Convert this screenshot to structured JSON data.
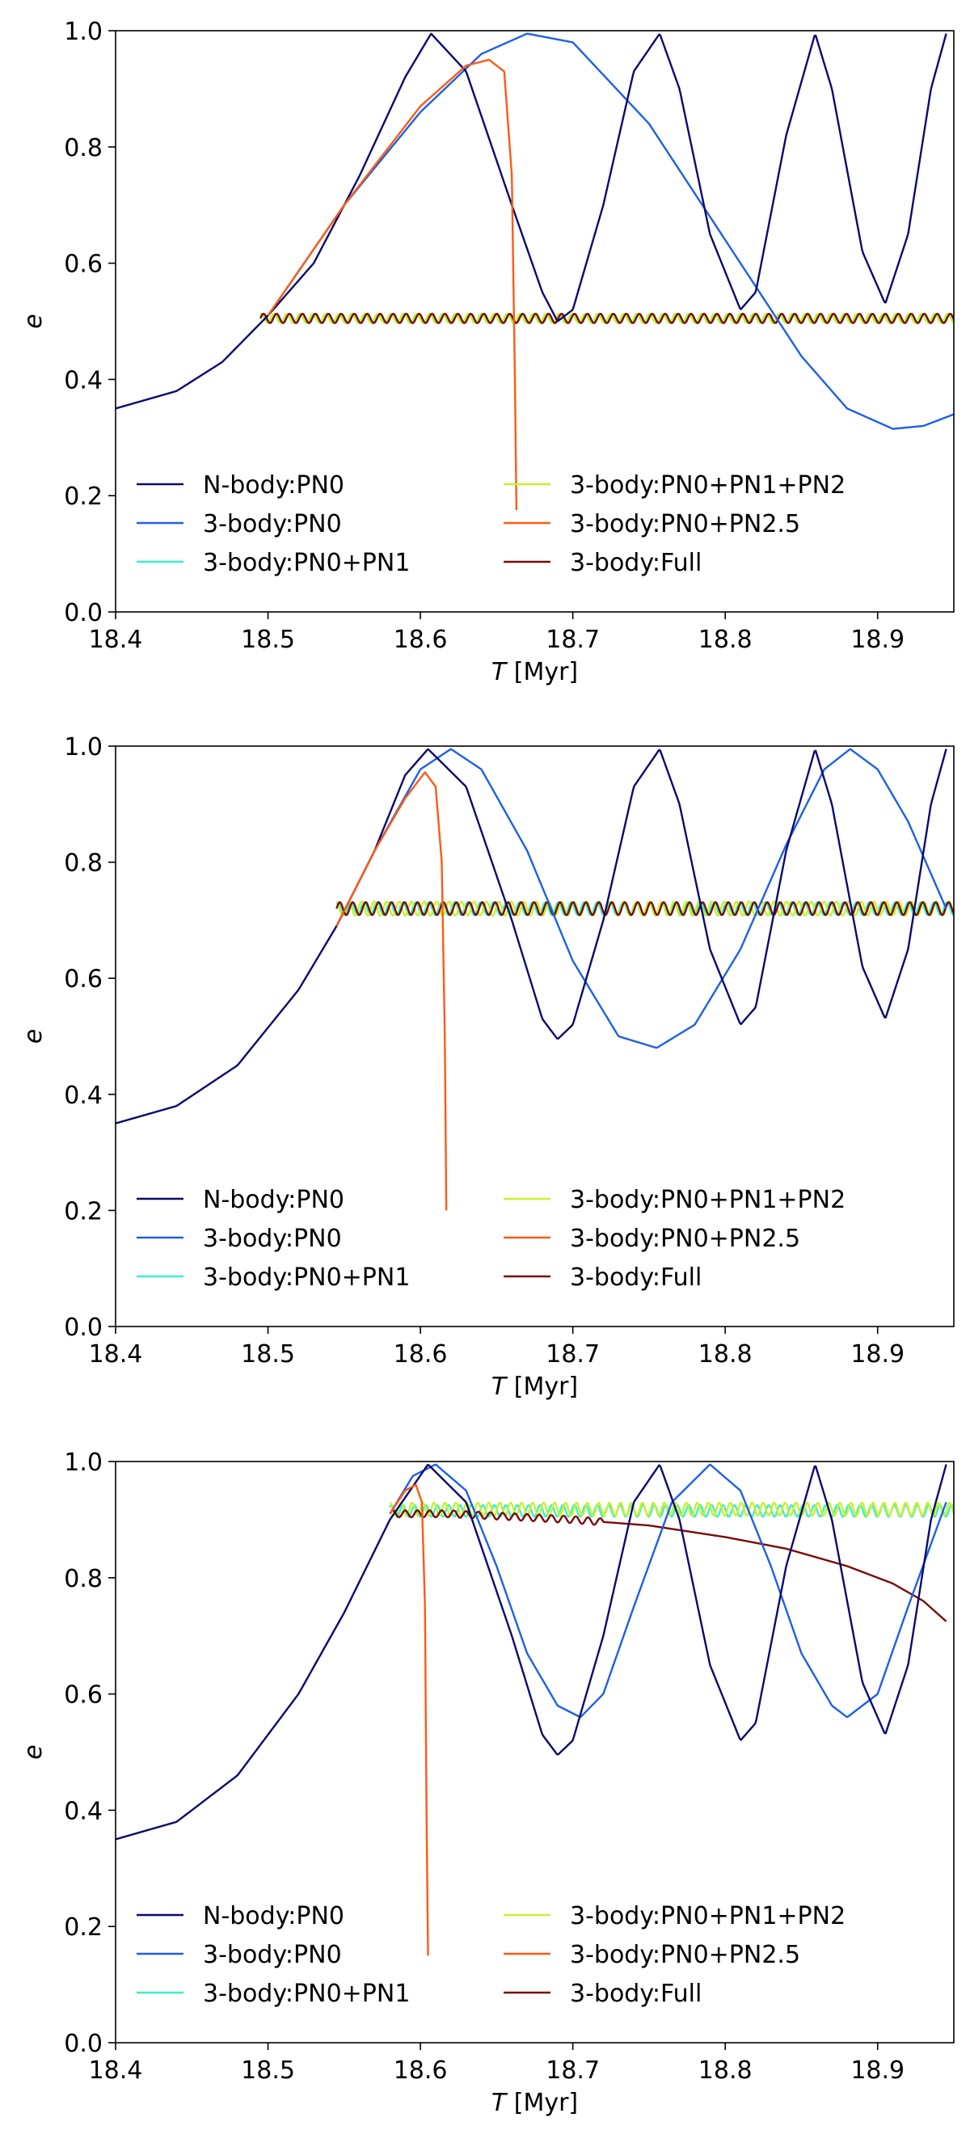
{
  "figure": {
    "panel_count": 3
  },
  "chart_data": [
    {
      "type": "line",
      "title": "",
      "xlabel": "T [Myr]",
      "xlabel_italic": "T",
      "xlabel_unit": " [Myr]",
      "ylabel": "e",
      "xlim": [
        18.4,
        18.95
      ],
      "ylim": [
        0.0,
        1.0
      ],
      "xticks": [
        18.4,
        18.5,
        18.6,
        18.7,
        18.8,
        18.9
      ],
      "xtick_labels": [
        "18.4",
        "18.5",
        "18.6",
        "18.7",
        "18.8",
        "18.9"
      ],
      "yticks": [
        0.0,
        0.2,
        0.4,
        0.6,
        0.8,
        1.0
      ],
      "ytick_labels": [
        "0.0",
        "0.2",
        "0.4",
        "0.6",
        "0.8",
        "1.0"
      ],
      "grid": false,
      "legend": {
        "placement": "lower-center",
        "columns": 2
      },
      "series": [
        {
          "name": "N-body:PN0",
          "color": "#0a0a6e",
          "points": [
            [
              18.4,
              0.35
            ],
            [
              18.44,
              0.38
            ],
            [
              18.47,
              0.43
            ],
            [
              18.5,
              0.51
            ],
            [
              18.53,
              0.6
            ],
            [
              18.56,
              0.75
            ],
            [
              18.59,
              0.92
            ],
            [
              18.607,
              0.995
            ],
            [
              18.63,
              0.93
            ],
            [
              18.66,
              0.7
            ],
            [
              18.68,
              0.55
            ],
            [
              18.69,
              0.5
            ],
            [
              18.7,
              0.52
            ],
            [
              18.72,
              0.7
            ],
            [
              18.74,
              0.93
            ],
            [
              18.757,
              0.995
            ],
            [
              18.77,
              0.9
            ],
            [
              18.79,
              0.65
            ],
            [
              18.81,
              0.52
            ],
            [
              18.82,
              0.55
            ],
            [
              18.84,
              0.82
            ],
            [
              18.859,
              0.995
            ],
            [
              18.87,
              0.9
            ],
            [
              18.89,
              0.62
            ],
            [
              18.905,
              0.53
            ],
            [
              18.92,
              0.65
            ],
            [
              18.935,
              0.9
            ],
            [
              18.945,
              0.995
            ]
          ]
        },
        {
          "name": "3-body:PN0",
          "color": "#1f5fe8",
          "points": [
            [
              18.5,
              0.51
            ],
            [
              18.55,
              0.7
            ],
            [
              18.6,
              0.86
            ],
            [
              18.64,
              0.96
            ],
            [
              18.67,
              0.995
            ],
            [
              18.7,
              0.98
            ],
            [
              18.75,
              0.84
            ],
            [
              18.8,
              0.64
            ],
            [
              18.85,
              0.44
            ],
            [
              18.88,
              0.35
            ],
            [
              18.91,
              0.315
            ],
            [
              18.93,
              0.32
            ],
            [
              18.95,
              0.34
            ]
          ]
        },
        {
          "name": "3-body:PN0+PN1",
          "color": "#3cf0c8",
          "points": []
        },
        {
          "name": "3-body:PN0+PN1+PN2",
          "color": "#c8f032",
          "points": []
        },
        {
          "name": "3-body:PN0+PN2.5",
          "color": "#ff5a14",
          "points": [
            [
              18.5,
              0.51
            ],
            [
              18.55,
              0.7
            ],
            [
              18.6,
              0.87
            ],
            [
              18.63,
              0.94
            ],
            [
              18.645,
              0.95
            ],
            [
              18.655,
              0.93
            ],
            [
              18.66,
              0.75
            ],
            [
              18.662,
              0.4
            ],
            [
              18.663,
              0.175
            ]
          ]
        },
        {
          "name": "3-body:Full",
          "color": "#7a0a0a",
          "points": []
        }
      ],
      "oscillations": [
        {
          "series": "3-body:PN0+PN1",
          "x_start": 18.495,
          "x_end": 18.95,
          "center": 0.505,
          "amp": 0.008,
          "period": 0.0085,
          "phase": 0.6
        },
        {
          "series": "3-body:PN0+PN1+PN2",
          "x_start": 18.495,
          "x_end": 18.95,
          "center": 0.505,
          "amp": 0.008,
          "period": 0.0085,
          "phase": 1.2
        },
        {
          "series": "3-body:Full",
          "x_start": 18.495,
          "x_end": 18.95,
          "center": 0.505,
          "amp": 0.008,
          "period": 0.0085,
          "phase": 0.0
        }
      ]
    },
    {
      "type": "line",
      "title": "",
      "xlabel": "T [Myr]",
      "xlabel_italic": "T",
      "xlabel_unit": " [Myr]",
      "ylabel": "e",
      "xlim": [
        18.4,
        18.95
      ],
      "ylim": [
        0.0,
        1.0
      ],
      "xticks": [
        18.4,
        18.5,
        18.6,
        18.7,
        18.8,
        18.9
      ],
      "xtick_labels": [
        "18.4",
        "18.5",
        "18.6",
        "18.7",
        "18.8",
        "18.9"
      ],
      "yticks": [
        0.0,
        0.2,
        0.4,
        0.6,
        0.8,
        1.0
      ],
      "ytick_labels": [
        "0.0",
        "0.2",
        "0.4",
        "0.6",
        "0.8",
        "1.0"
      ],
      "grid": false,
      "legend": {
        "placement": "lower-center",
        "columns": 2
      },
      "series": [
        {
          "name": "N-body:PN0",
          "color": "#0a0a6e",
          "points": [
            [
              18.4,
              0.35
            ],
            [
              18.44,
              0.38
            ],
            [
              18.48,
              0.45
            ],
            [
              18.52,
              0.58
            ],
            [
              18.545,
              0.69
            ],
            [
              18.57,
              0.82
            ],
            [
              18.59,
              0.95
            ],
            [
              18.605,
              0.995
            ],
            [
              18.63,
              0.93
            ],
            [
              18.66,
              0.7
            ],
            [
              18.68,
              0.53
            ],
            [
              18.69,
              0.495
            ],
            [
              18.7,
              0.52
            ],
            [
              18.72,
              0.7
            ],
            [
              18.74,
              0.93
            ],
            [
              18.757,
              0.995
            ],
            [
              18.77,
              0.9
            ],
            [
              18.79,
              0.65
            ],
            [
              18.81,
              0.52
            ],
            [
              18.82,
              0.55
            ],
            [
              18.84,
              0.82
            ],
            [
              18.859,
              0.995
            ],
            [
              18.87,
              0.9
            ],
            [
              18.89,
              0.62
            ],
            [
              18.905,
              0.53
            ],
            [
              18.92,
              0.65
            ],
            [
              18.935,
              0.9
            ],
            [
              18.945,
              0.995
            ]
          ]
        },
        {
          "name": "3-body:PN0",
          "color": "#1f5fe8",
          "points": [
            [
              18.545,
              0.69
            ],
            [
              18.57,
              0.82
            ],
            [
              18.6,
              0.96
            ],
            [
              18.62,
              0.995
            ],
            [
              18.64,
              0.96
            ],
            [
              18.67,
              0.82
            ],
            [
              18.7,
              0.63
            ],
            [
              18.73,
              0.5
            ],
            [
              18.755,
              0.48
            ],
            [
              18.78,
              0.52
            ],
            [
              18.81,
              0.65
            ],
            [
              18.84,
              0.83
            ],
            [
              18.865,
              0.96
            ],
            [
              18.882,
              0.995
            ],
            [
              18.9,
              0.96
            ],
            [
              18.92,
              0.87
            ],
            [
              18.945,
              0.72
            ]
          ]
        },
        {
          "name": "3-body:PN0+PN1",
          "color": "#3cf0c8",
          "points": []
        },
        {
          "name": "3-body:PN0+PN1+PN2",
          "color": "#c8f032",
          "points": []
        },
        {
          "name": "3-body:PN0+PN2.5",
          "color": "#ff5a14",
          "points": [
            [
              18.545,
              0.69
            ],
            [
              18.57,
              0.82
            ],
            [
              18.59,
              0.91
            ],
            [
              18.603,
              0.955
            ],
            [
              18.61,
              0.93
            ],
            [
              18.614,
              0.8
            ],
            [
              18.616,
              0.5
            ],
            [
              18.617,
              0.2
            ]
          ]
        },
        {
          "name": "3-body:Full",
          "color": "#7a0a0a",
          "points": []
        }
      ],
      "oscillations": [
        {
          "series": "3-body:PN0+PN1",
          "x_start": 18.545,
          "x_end": 18.95,
          "center": 0.72,
          "amp": 0.011,
          "period": 0.0085,
          "phase": 0.8
        },
        {
          "series": "3-body:PN0+PN1+PN2",
          "x_start": 18.545,
          "x_end": 18.95,
          "center": 0.72,
          "amp": 0.012,
          "period": 0.0082,
          "phase": 1.6
        },
        {
          "series": "3-body:Full",
          "x_start": 18.545,
          "x_end": 18.95,
          "center": 0.72,
          "amp": 0.011,
          "period": 0.0085,
          "phase": 0.0
        }
      ]
    },
    {
      "type": "line",
      "title": "",
      "xlabel": "T [Myr]",
      "xlabel_italic": "T",
      "xlabel_unit": " [Myr]",
      "ylabel": "e",
      "xlim": [
        18.4,
        18.95
      ],
      "ylim": [
        0.0,
        1.0
      ],
      "xticks": [
        18.4,
        18.5,
        18.6,
        18.7,
        18.8,
        18.9
      ],
      "xtick_labels": [
        "18.4",
        "18.5",
        "18.6",
        "18.7",
        "18.8",
        "18.9"
      ],
      "yticks": [
        0.0,
        0.2,
        0.4,
        0.6,
        0.8,
        1.0
      ],
      "ytick_labels": [
        "0.0",
        "0.2",
        "0.4",
        "0.6",
        "0.8",
        "1.0"
      ],
      "grid": false,
      "legend": {
        "placement": "lower-center",
        "columns": 2
      },
      "series": [
        {
          "name": "N-body:PN0",
          "color": "#0a0a6e",
          "points": [
            [
              18.4,
              0.35
            ],
            [
              18.44,
              0.38
            ],
            [
              18.48,
              0.46
            ],
            [
              18.52,
              0.6
            ],
            [
              18.55,
              0.74
            ],
            [
              18.58,
              0.9
            ],
            [
              18.605,
              0.995
            ],
            [
              18.63,
              0.93
            ],
            [
              18.66,
              0.7
            ],
            [
              18.68,
              0.53
            ],
            [
              18.69,
              0.495
            ],
            [
              18.7,
              0.52
            ],
            [
              18.72,
              0.7
            ],
            [
              18.74,
              0.93
            ],
            [
              18.757,
              0.995
            ],
            [
              18.77,
              0.9
            ],
            [
              18.79,
              0.65
            ],
            [
              18.81,
              0.52
            ],
            [
              18.82,
              0.55
            ],
            [
              18.84,
              0.82
            ],
            [
              18.859,
              0.995
            ],
            [
              18.87,
              0.9
            ],
            [
              18.89,
              0.62
            ],
            [
              18.905,
              0.53
            ],
            [
              18.92,
              0.65
            ],
            [
              18.935,
              0.9
            ],
            [
              18.945,
              0.995
            ]
          ]
        },
        {
          "name": "3-body:PN0",
          "color": "#1f5fe8",
          "points": [
            [
              18.58,
              0.91
            ],
            [
              18.595,
              0.975
            ],
            [
              18.61,
              0.995
            ],
            [
              18.63,
              0.95
            ],
            [
              18.65,
              0.82
            ],
            [
              18.67,
              0.67
            ],
            [
              18.69,
              0.58
            ],
            [
              18.705,
              0.56
            ],
            [
              18.72,
              0.6
            ],
            [
              18.74,
              0.75
            ],
            [
              18.765,
              0.93
            ],
            [
              18.79,
              0.995
            ],
            [
              18.81,
              0.95
            ],
            [
              18.83,
              0.82
            ],
            [
              18.85,
              0.67
            ],
            [
              18.87,
              0.58
            ],
            [
              18.88,
              0.56
            ],
            [
              18.9,
              0.6
            ],
            [
              18.92,
              0.75
            ],
            [
              18.945,
              0.93
            ]
          ]
        },
        {
          "name": "3-body:PN0+PN1",
          "color": "#3cf0c8",
          "points": []
        },
        {
          "name": "3-body:PN0+PN1+PN2",
          "color": "#c8f032",
          "points": []
        },
        {
          "name": "3-body:PN0+PN2.5",
          "color": "#ff5a14",
          "points": [
            [
              18.58,
              0.91
            ],
            [
              18.59,
              0.95
            ],
            [
              18.597,
              0.96
            ],
            [
              18.601,
              0.93
            ],
            [
              18.603,
              0.75
            ],
            [
              18.604,
              0.4
            ],
            [
              18.605,
              0.15
            ]
          ]
        },
        {
          "name": "3-body:Full",
          "color": "#7a0a0a",
          "points": [
            [
              18.58,
              0.91
            ],
            [
              18.62,
              0.91
            ],
            [
              18.66,
              0.905
            ],
            [
              18.7,
              0.9
            ],
            [
              18.75,
              0.89
            ],
            [
              18.8,
              0.87
            ],
            [
              18.84,
              0.85
            ],
            [
              18.88,
              0.82
            ],
            [
              18.91,
              0.79
            ],
            [
              18.93,
              0.76
            ],
            [
              18.945,
              0.725
            ]
          ]
        }
      ],
      "oscillations": [
        {
          "series": "3-body:PN0+PN1",
          "x_start": 18.58,
          "x_end": 18.95,
          "center": 0.915,
          "amp": 0.01,
          "period": 0.0075,
          "phase": 0.7
        },
        {
          "series": "3-body:PN0+PN1+PN2",
          "x_start": 18.58,
          "x_end": 18.95,
          "center": 0.918,
          "amp": 0.011,
          "period": 0.0072,
          "phase": 1.5
        },
        {
          "series": "3-body:Full",
          "x_start": 18.58,
          "x_end": 18.72,
          "center": 0.0,
          "amp": 0.006,
          "period": 0.008,
          "phase": 0.0,
          "additive": true
        }
      ]
    }
  ]
}
